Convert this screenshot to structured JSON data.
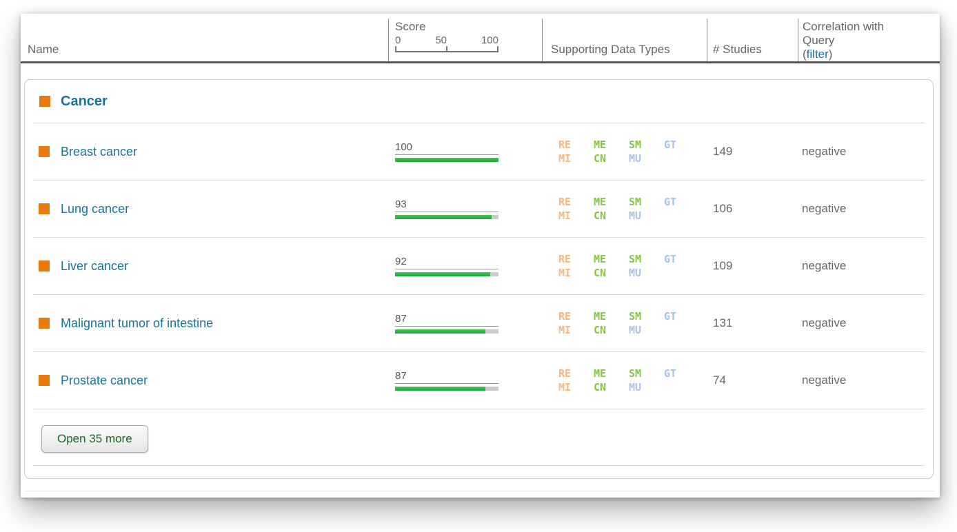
{
  "header": {
    "name_label": "Name",
    "score_label": "Score",
    "scale_min": "0",
    "scale_mid": "50",
    "scale_max": "100",
    "data_types_label": "Supporting Data Types",
    "studies_label": "# Studies",
    "correlation_line1": "Correlation with",
    "correlation_line2": "Query",
    "filter_open": "(",
    "filter_link": "filter",
    "filter_close": ")"
  },
  "group": {
    "title": "Cancer",
    "swatch_color": "#E8790D"
  },
  "badges": {
    "items": [
      {
        "label": "RE",
        "color": "#F8B67C"
      },
      {
        "label": "ME",
        "color": "#85C445"
      },
      {
        "label": "SM",
        "color": "#85C445"
      },
      {
        "label": "GT",
        "color": "#A7C4E6"
      },
      {
        "label": "MI",
        "color": "#F8B67C"
      },
      {
        "label": "CN",
        "color": "#85C445"
      },
      {
        "label": "MU",
        "color": "#A7C4E6"
      }
    ]
  },
  "table": {
    "rows": [
      {
        "name": "Breast cancer",
        "score": 100,
        "studies": "149",
        "correlation": "negative"
      },
      {
        "name": "Lung cancer",
        "score": 93,
        "studies": "106",
        "correlation": "negative"
      },
      {
        "name": "Liver cancer",
        "score": 92,
        "studies": "109",
        "correlation": "negative"
      },
      {
        "name": "Malignant tumor of intestine",
        "score": 87,
        "studies": "131",
        "correlation": "negative"
      },
      {
        "name": "Prostate cancer",
        "score": 87,
        "studies": "74",
        "correlation": "negative"
      }
    ]
  },
  "footer": {
    "open_more_label": "Open 35 more"
  },
  "colors": {
    "accent_teal": "#17749B",
    "bar_green": "#22B24C",
    "bar_track": "#CCCCCC",
    "swatch_orange": "#E8790D",
    "link_blue": "#1673A3",
    "button_text_green": "#15691C",
    "header_rule": "#555555"
  }
}
